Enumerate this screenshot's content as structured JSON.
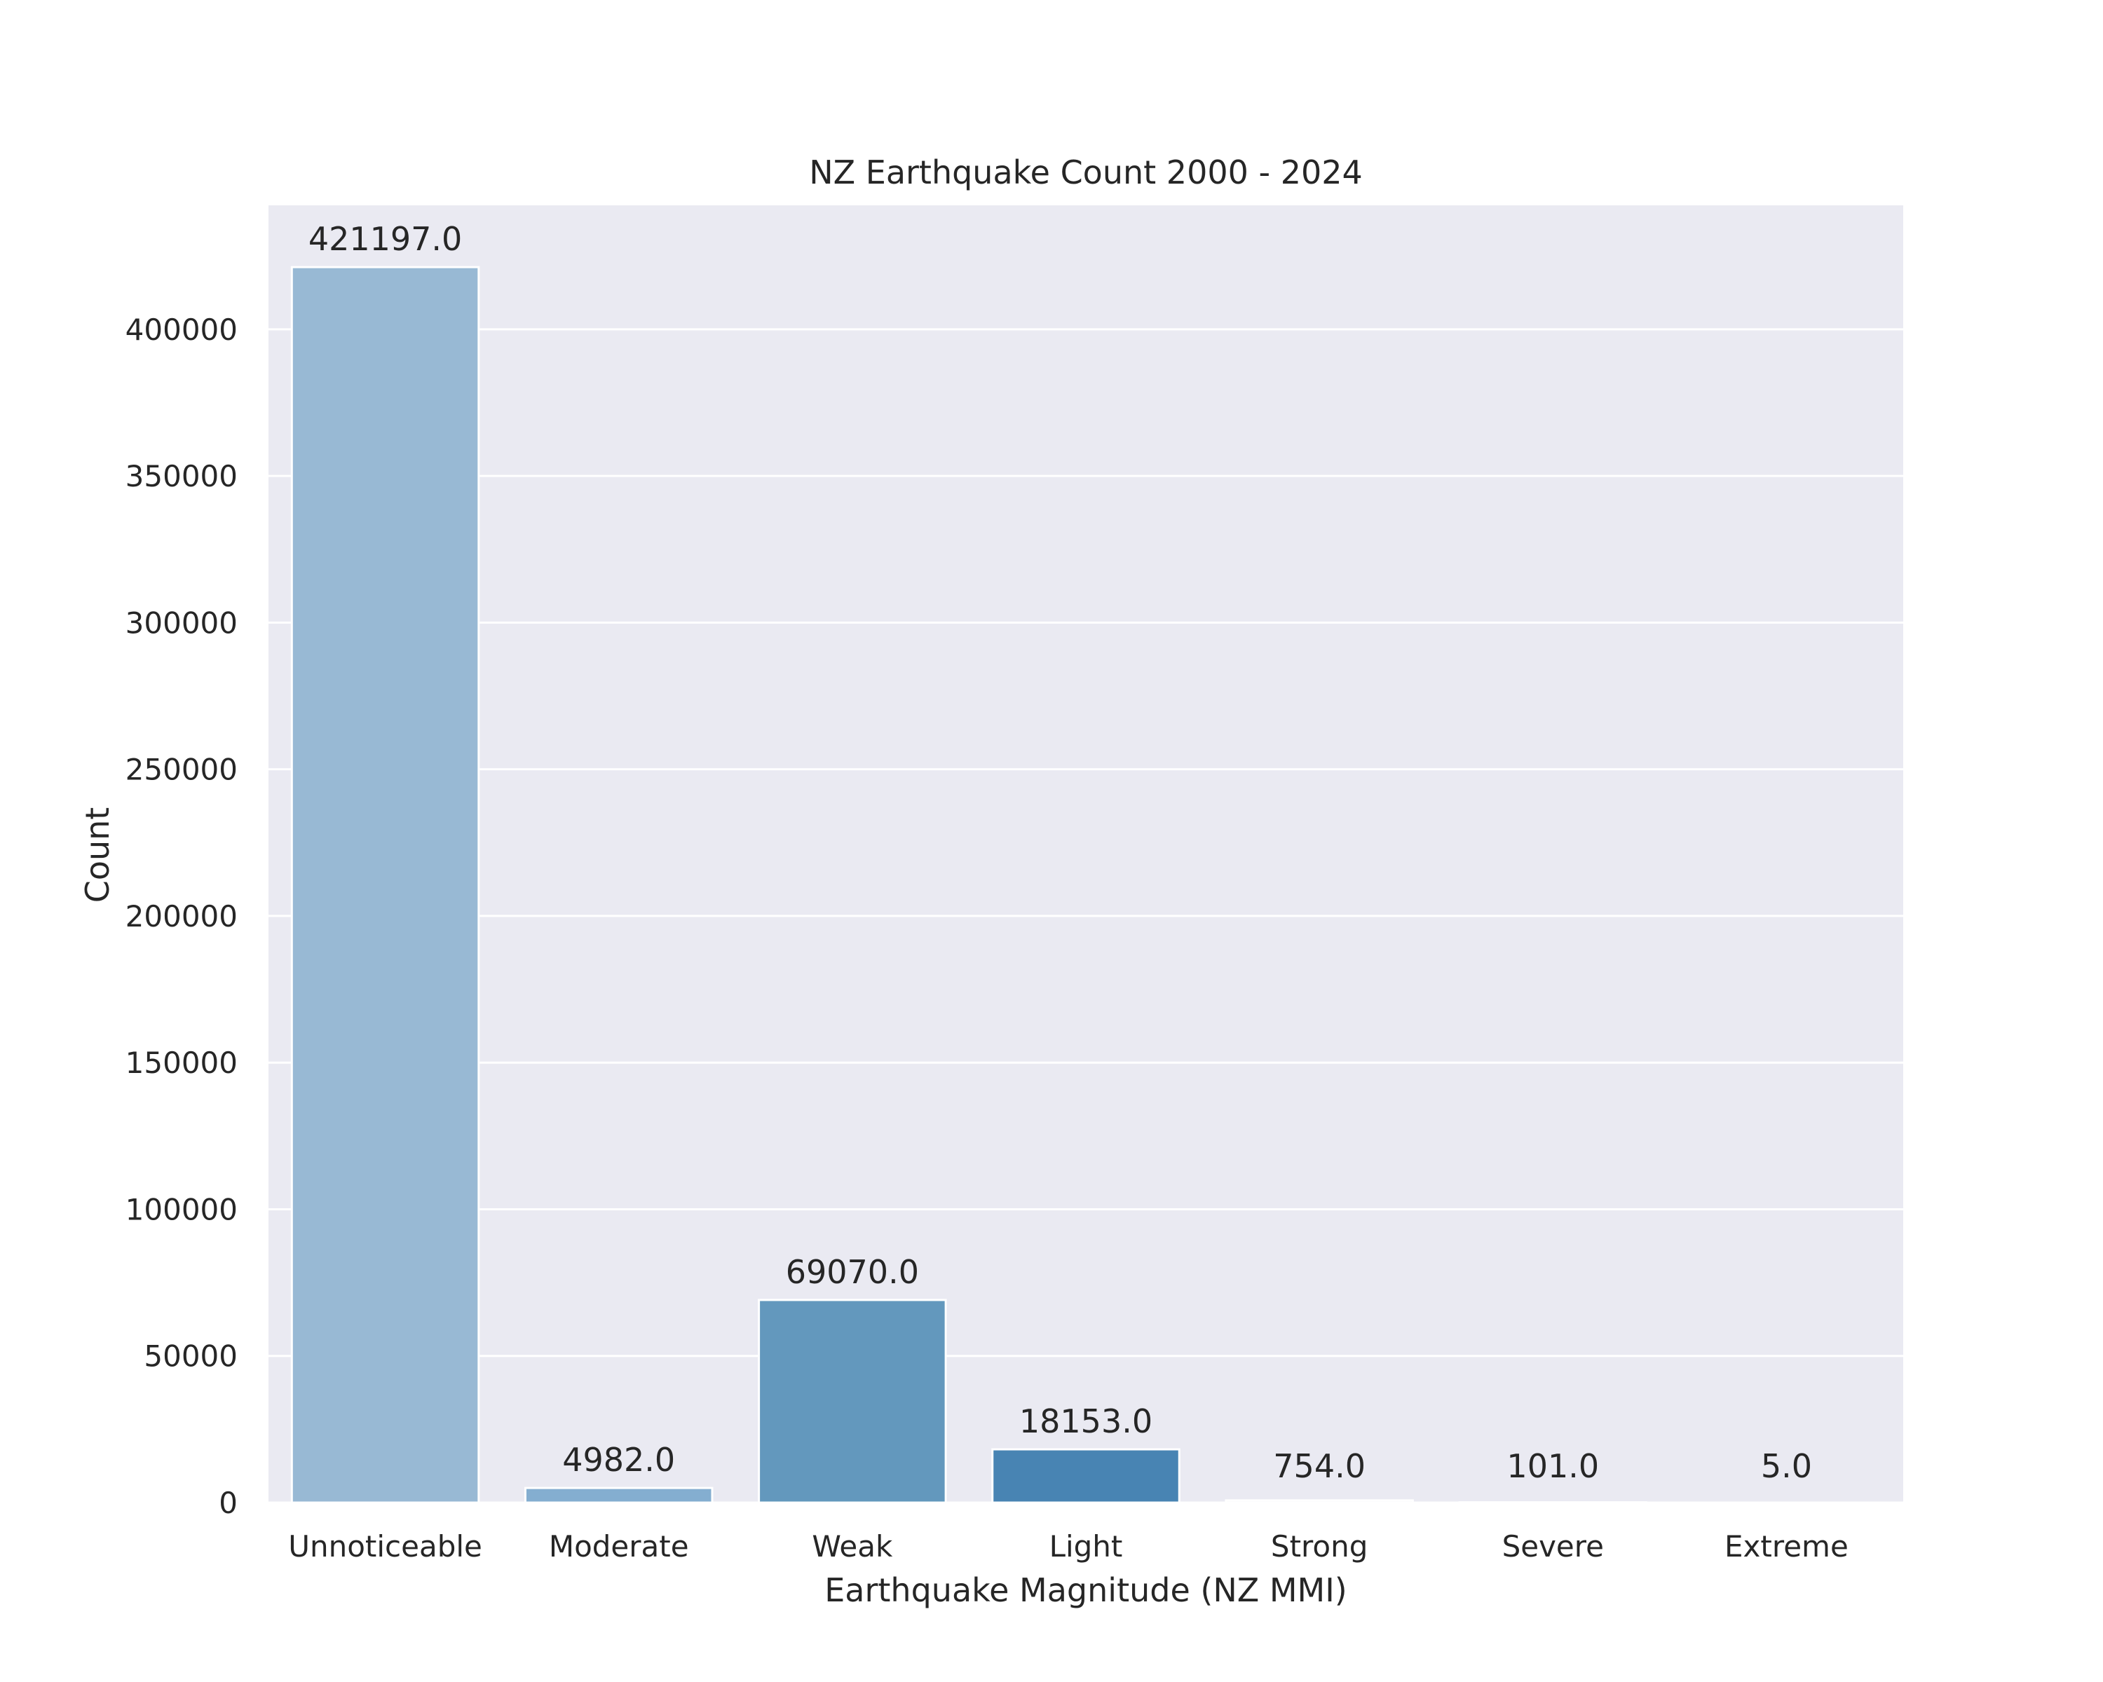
{
  "chart_data": {
    "type": "bar",
    "title": "NZ Earthquake Count 2000 - 2024",
    "xlabel": "Earthquake Magnitude (NZ MMI)",
    "ylabel": "Count",
    "categories": [
      "Unnoticeable",
      "Moderate",
      "Weak",
      "Light",
      "Strong",
      "Severe",
      "Extreme"
    ],
    "values": [
      421197.0,
      4982.0,
      69070.0,
      18153.0,
      754.0,
      101.0,
      5.0
    ],
    "value_labels": [
      "421197.0",
      "4982.0",
      "69070.0",
      "18153.0",
      "754.0",
      "101.0",
      "5.0"
    ],
    "colors": [
      "#98b9d4",
      "#84aed0",
      "#6398bd",
      "#4884b3",
      "#e8e8f0",
      "#e8e8f0",
      "#e8e8f0"
    ],
    "yticks": [
      0,
      50000,
      100000,
      150000,
      200000,
      250000,
      300000,
      350000,
      400000
    ],
    "ytick_labels": [
      "0",
      "50000",
      "100000",
      "150000",
      "200000",
      "250000",
      "300000",
      "350000",
      "400000"
    ],
    "ylim": [
      0,
      442257
    ],
    "grid": true,
    "background_color": "#eaeaf2",
    "grid_color": "#ffffff",
    "text_color": "#262626"
  }
}
